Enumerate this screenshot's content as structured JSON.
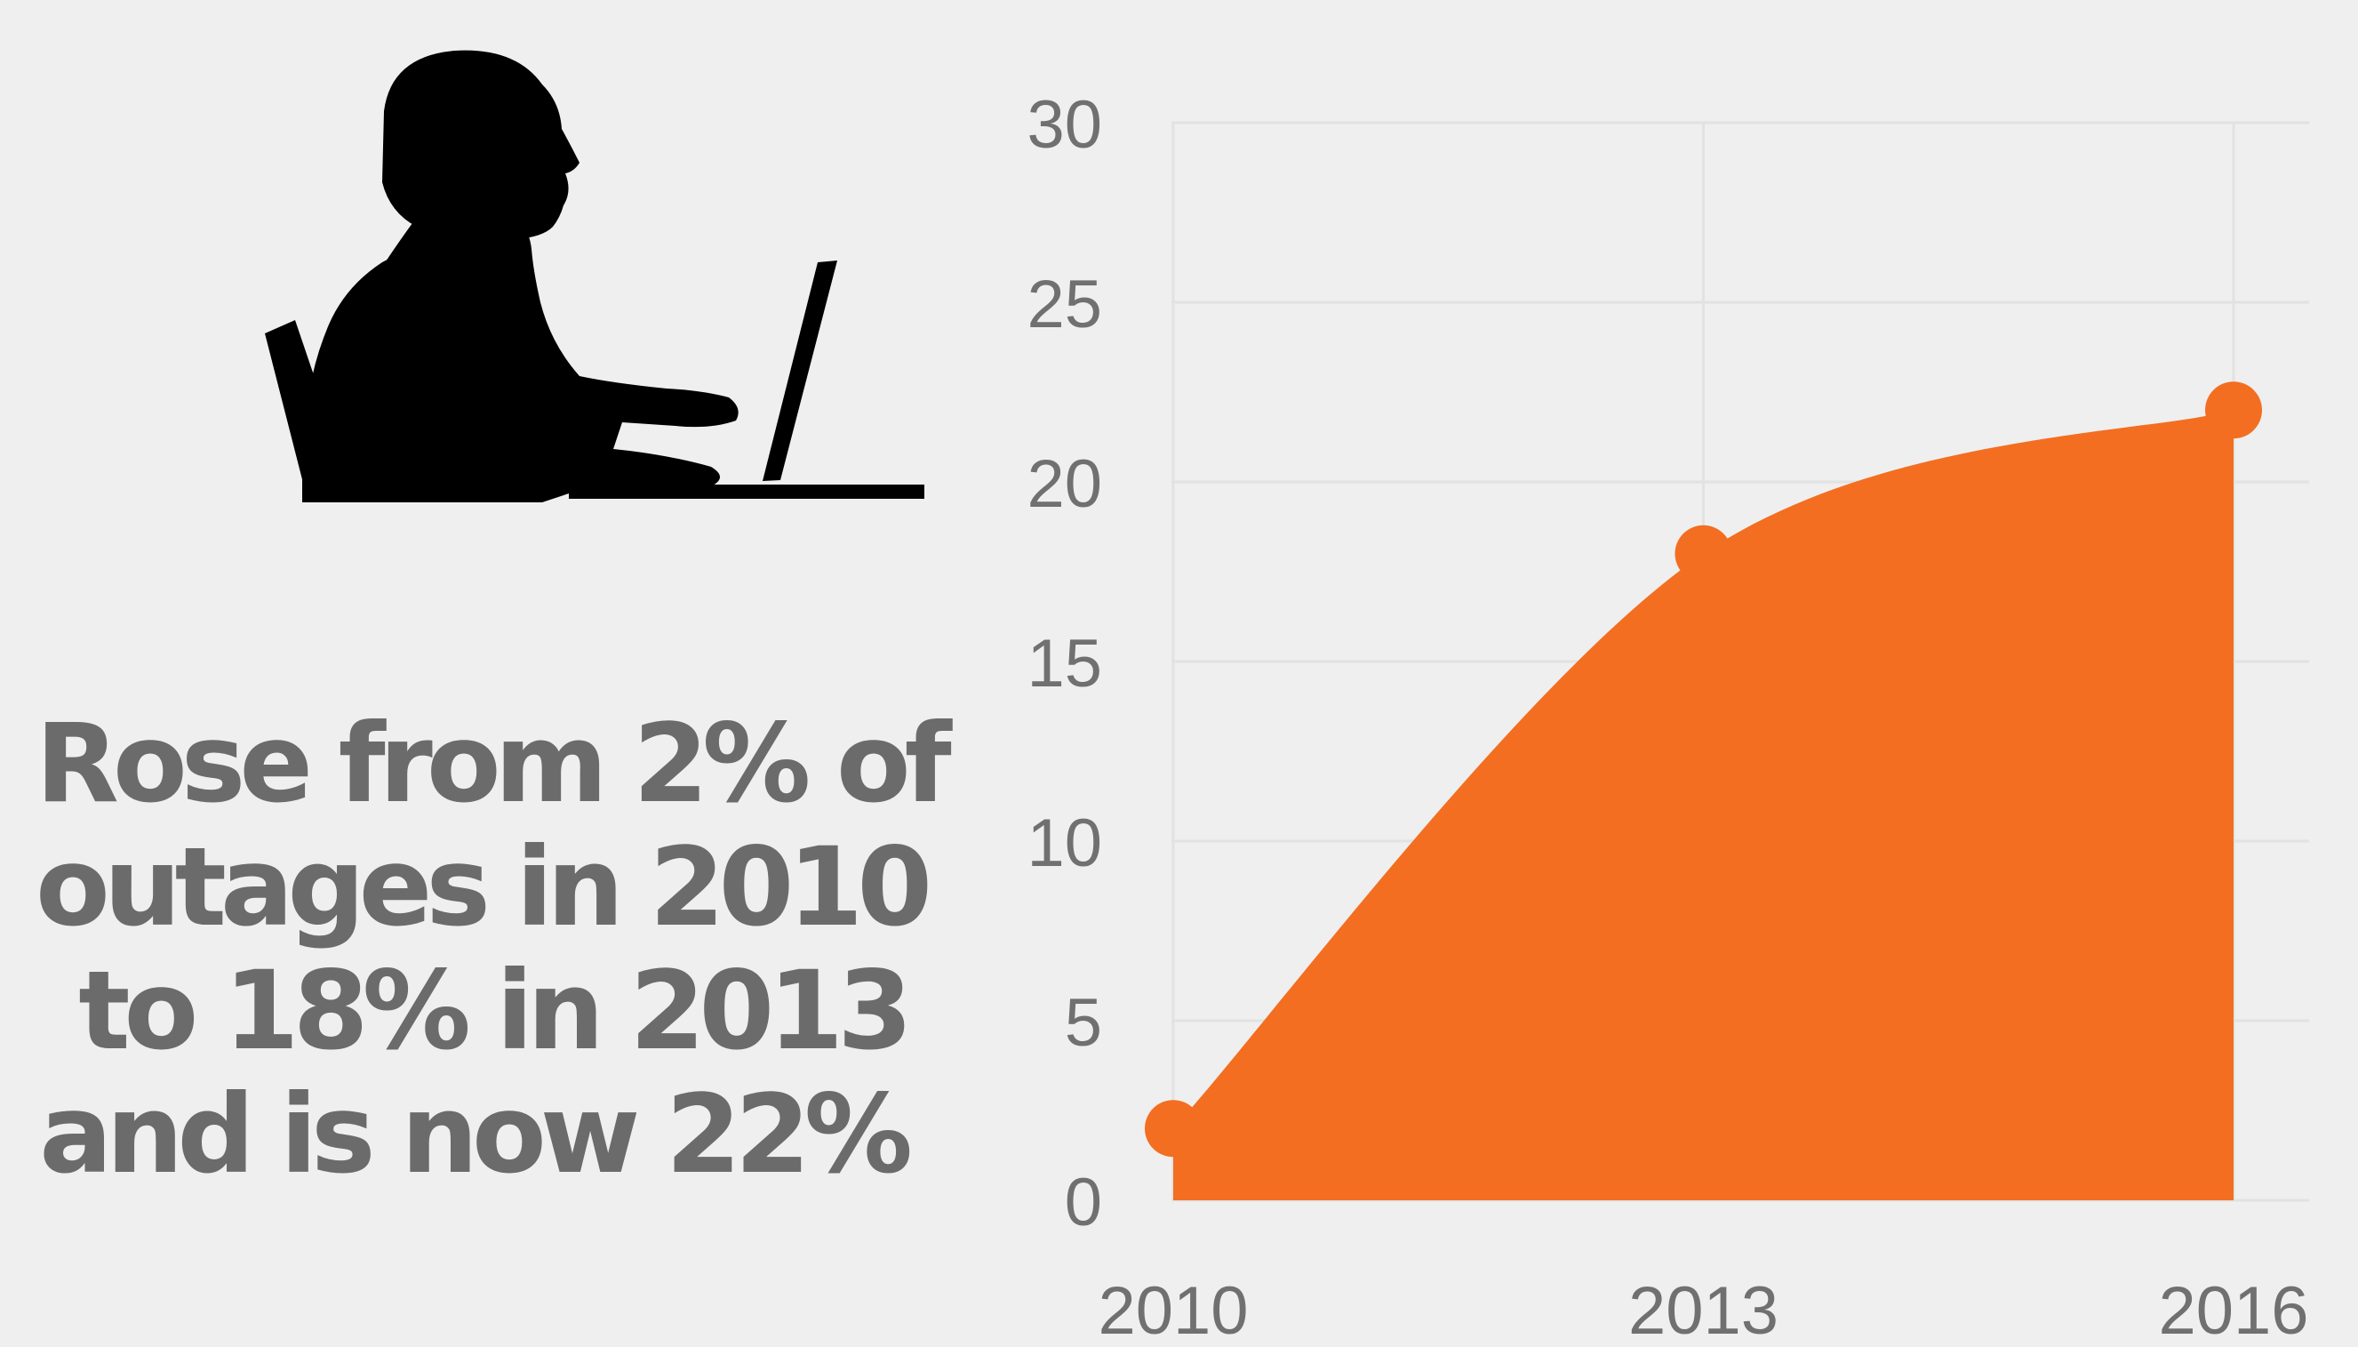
{
  "caption": {
    "line1": "Rose from 2% of",
    "line2": "outages in 2010",
    "line3": "to 18% in 2013",
    "line4": "and is now 22%"
  },
  "icons": {
    "person": "person-at-laptop-silhouette-icon"
  },
  "colors": {
    "background": "#efefef",
    "area": "#f36e21",
    "caption_text": "#6b6b6b",
    "tick_text": "#707070",
    "gridline": "#e2e2e2"
  },
  "chart_data": {
    "type": "area",
    "x": [
      "2010",
      "2013",
      "2016"
    ],
    "series": [
      {
        "values": [
          2,
          18,
          22
        ]
      }
    ],
    "xlabel": "",
    "ylabel": "",
    "ylim": [
      0,
      30
    ],
    "yticks": [
      "0",
      "5",
      "10",
      "15",
      "20",
      "25",
      "30"
    ],
    "xticks": [
      "2010",
      "2013",
      "2016"
    ],
    "grid": true,
    "smooth": true,
    "markers": true
  }
}
